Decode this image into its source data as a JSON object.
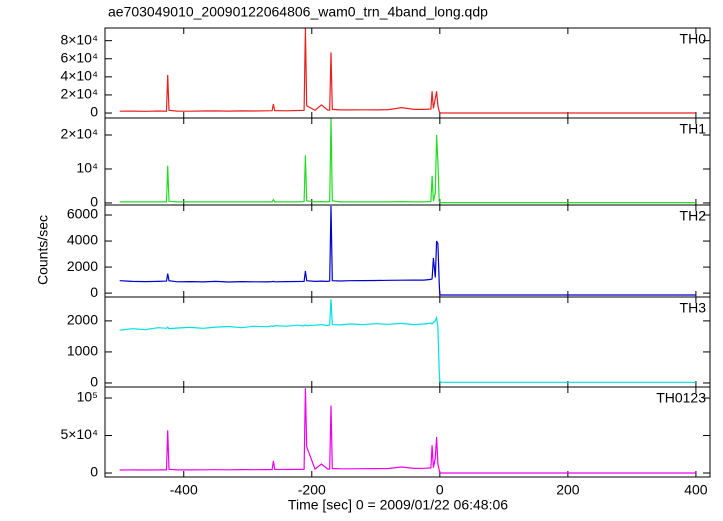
{
  "chart_data": [
    {
      "type": "line",
      "title": "ae703049010_20090122064806_wam0_trn_4band_long.qdp",
      "x": [
        -500,
        -480,
        -460,
        -440,
        -427,
        -425,
        -423,
        -410,
        -390,
        -370,
        -350,
        -330,
        -310,
        -290,
        -270,
        -262,
        -260,
        -258,
        -240,
        -222,
        -212,
        -210,
        -208,
        -195,
        -185,
        -175,
        -172,
        -170,
        -168,
        -155,
        -140,
        -120,
        -100,
        -80,
        -60,
        -40,
        -25,
        -14,
        -12,
        -10,
        -7,
        -5,
        -3,
        -1,
        0,
        2,
        5,
        50,
        100,
        150,
        200,
        250,
        300,
        350,
        400
      ],
      "xlim": [
        -523,
        422
      ],
      "ylim": [
        -5500,
        94000
      ],
      "yticks": [
        0,
        {
          "value": 20000,
          "label": "2×10⁴"
        },
        {
          "value": 40000,
          "label": "4×10⁴"
        },
        {
          "value": 60000,
          "label": "6×10⁴"
        },
        {
          "value": 80000,
          "label": "8×10⁴"
        }
      ],
      "series": [
        {
          "name": "TH0",
          "color": "#e8201e",
          "values": [
            2000,
            2100,
            1900,
            2200,
            2000,
            42000,
            3000,
            2100,
            2000,
            2200,
            2300,
            2100,
            2400,
            2200,
            2500,
            2600,
            10000,
            2700,
            2500,
            2800,
            3000,
            94000,
            8000,
            3000,
            9000,
            3200,
            3300,
            67000,
            4000,
            3500,
            3400,
            3600,
            3500,
            3800,
            6000,
            4000,
            4000,
            4500,
            24000,
            5000,
            16000,
            24000,
            8000,
            2000,
            0,
            0,
            0,
            0,
            0,
            0,
            0,
            0,
            0,
            0,
            0
          ]
        }
      ]
    },
    {
      "type": "line",
      "x": [
        -500,
        -480,
        -460,
        -440,
        -427,
        -425,
        -423,
        -410,
        -390,
        -370,
        -350,
        -330,
        -310,
        -290,
        -270,
        -262,
        -260,
        -258,
        -240,
        -222,
        -212,
        -210,
        -208,
        -195,
        -185,
        -175,
        -172,
        -170,
        -168,
        -155,
        -140,
        -120,
        -100,
        -80,
        -60,
        -40,
        -25,
        -14,
        -12,
        -10,
        -7,
        -5,
        -3,
        -1,
        0,
        2,
        5,
        50,
        100,
        150,
        200,
        250,
        300,
        350,
        400
      ],
      "xlim": [
        -523,
        422
      ],
      "ylim": [
        -600,
        25000
      ],
      "yticks": [
        0,
        {
          "value": 10000,
          "label": "10⁴"
        },
        {
          "value": 20000,
          "label": "2×10⁴"
        }
      ],
      "series": [
        {
          "name": "TH1",
          "color": "#22dd22",
          "values": [
            300,
            300,
            300,
            300,
            300,
            11000,
            500,
            300,
            300,
            300,
            300,
            300,
            300,
            300,
            300,
            300,
            1000,
            300,
            300,
            300,
            400,
            14000,
            600,
            300,
            400,
            300,
            400,
            25000,
            600,
            300,
            300,
            300,
            300,
            300,
            400,
            300,
            300,
            400,
            8000,
            500,
            3000,
            20000,
            12000,
            500,
            150,
            100,
            100,
            100,
            100,
            100,
            100,
            100,
            100,
            100,
            100
          ]
        }
      ]
    },
    {
      "type": "line",
      "ylabel": "Counts/sec",
      "x": [
        -500,
        -480,
        -460,
        -440,
        -427,
        -425,
        -423,
        -410,
        -390,
        -370,
        -350,
        -330,
        -310,
        -290,
        -270,
        -262,
        -260,
        -258,
        -240,
        -222,
        -212,
        -210,
        -208,
        -195,
        -185,
        -175,
        -172,
        -170,
        -168,
        -155,
        -140,
        -120,
        -100,
        -80,
        -60,
        -40,
        -25,
        -14,
        -12,
        -10,
        -7,
        -5,
        -3,
        -1,
        0,
        2,
        5,
        50,
        100,
        150,
        200,
        250,
        300,
        350,
        400
      ],
      "xlim": [
        -523,
        422
      ],
      "ylim": [
        -300,
        6770
      ],
      "yticks": [
        0,
        2000,
        4000,
        6000
      ],
      "series": [
        {
          "name": "TH2",
          "color": "#0000cc",
          "values": [
            950,
            900,
            880,
            900,
            920,
            1500,
            950,
            870,
            880,
            860,
            900,
            850,
            880,
            870,
            860,
            880,
            900,
            870,
            880,
            890,
            900,
            1700,
            950,
            900,
            920,
            900,
            930,
            6700,
            950,
            930,
            950,
            960,
            970,
            980,
            990,
            1000,
            1000,
            1050,
            1100,
            2700,
            1200,
            4000,
            3800,
            800,
            -100,
            -150,
            -150,
            -150,
            -150,
            -150,
            -150,
            -150,
            -150,
            -150,
            -150
          ]
        }
      ]
    },
    {
      "type": "line",
      "x": [
        -500,
        -480,
        -460,
        -440,
        -427,
        -425,
        -423,
        -410,
        -390,
        -370,
        -350,
        -330,
        -310,
        -290,
        -270,
        -262,
        -260,
        -258,
        -240,
        -222,
        -212,
        -210,
        -208,
        -195,
        -185,
        -175,
        -172,
        -170,
        -168,
        -155,
        -140,
        -120,
        -100,
        -80,
        -60,
        -40,
        -25,
        -14,
        -12,
        -10,
        -7,
        -5,
        -3,
        -1,
        0,
        2,
        5,
        50,
        100,
        150,
        200,
        250,
        300,
        350,
        400
      ],
      "xlim": [
        -523,
        422
      ],
      "ylim": [
        -130,
        2770
      ],
      "yticks": [
        0,
        1000,
        2000
      ],
      "series": [
        {
          "name": "TH3",
          "color": "#00e0e0",
          "values": [
            1700,
            1750,
            1720,
            1780,
            1760,
            1800,
            1750,
            1770,
            1790,
            1760,
            1800,
            1820,
            1780,
            1830,
            1810,
            1840,
            1820,
            1850,
            1830,
            1860,
            1840,
            1870,
            1850,
            1860,
            1880,
            1850,
            1870,
            2700,
            1880,
            1870,
            1900,
            1880,
            1910,
            1890,
            1920,
            1880,
            1900,
            1930,
            1900,
            1950,
            2000,
            2100,
            1800,
            400,
            50,
            20,
            20,
            20,
            20,
            20,
            20,
            20,
            20,
            20,
            20
          ]
        }
      ]
    },
    {
      "type": "line",
      "xlabel": "Time [sec] 0 = 2009/01/22 06:48:06",
      "x": [
        -500,
        -480,
        -460,
        -440,
        -427,
        -425,
        -423,
        -410,
        -390,
        -370,
        -350,
        -330,
        -310,
        -290,
        -270,
        -262,
        -260,
        -258,
        -240,
        -222,
        -212,
        -210,
        -208,
        -195,
        -185,
        -175,
        -172,
        -170,
        -168,
        -155,
        -140,
        -120,
        -100,
        -80,
        -60,
        -40,
        -25,
        -14,
        -12,
        -10,
        -7,
        -5,
        -3,
        -1,
        0,
        2,
        5,
        50,
        100,
        150,
        200,
        250,
        300,
        350,
        400
      ],
      "xlim": [
        -523,
        422
      ],
      "ylim": [
        -5300,
        114700
      ],
      "xticks": [
        -400,
        -200,
        0,
        200,
        400
      ],
      "yticks": [
        0,
        {
          "value": 50000,
          "label": "5×10⁴"
        },
        {
          "value": 100000,
          "label": "10⁵"
        }
      ],
      "series": [
        {
          "name": "TH0123",
          "color": "#ee00ee",
          "values": [
            4000,
            4100,
            4000,
            4200,
            4100,
            57000,
            5000,
            4200,
            4200,
            4300,
            4400,
            4300,
            4500,
            4400,
            4600,
            4700,
            16000,
            4800,
            4700,
            4900,
            5000,
            113000,
            35000,
            5200,
            12000,
            5300,
            5500,
            90000,
            6000,
            5600,
            5700,
            5800,
            5900,
            6000,
            8000,
            6200,
            6300,
            6800,
            37000,
            7000,
            20000,
            48000,
            12000,
            4000,
            0,
            0,
            0,
            0,
            0,
            0,
            0,
            0,
            0,
            0,
            0
          ]
        }
      ]
    }
  ]
}
